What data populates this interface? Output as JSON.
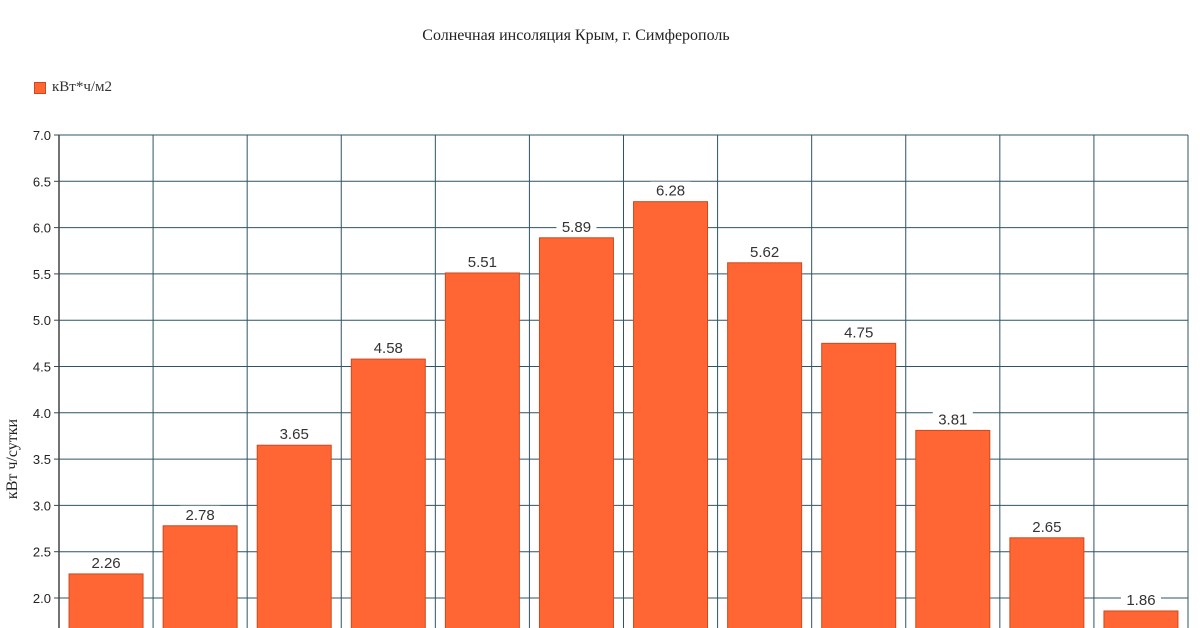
{
  "chart_data": {
    "type": "bar",
    "title": "Солнечная инсоляция Крым, г. Симферополь",
    "ylabel": "кВт ч/сутки",
    "xlabel": "",
    "categories": [
      "",
      "",
      "",
      "",
      "",
      "",
      "",
      "",
      "",
      "",
      "",
      ""
    ],
    "series": [
      {
        "name": "кВт*ч/м2",
        "values": [
          2.26,
          2.78,
          3.65,
          4.58,
          5.51,
          5.89,
          6.28,
          5.62,
          4.75,
          3.81,
          2.65,
          1.86
        ]
      }
    ],
    "ylim": [
      2.0,
      7.0
    ],
    "yticks": [
      "2.0",
      "2.5",
      "3.0",
      "3.5",
      "4.0",
      "4.5",
      "5.0",
      "5.5",
      "6.0",
      "6.5",
      "7.0"
    ],
    "grid": true,
    "legend_position": "top-left",
    "colors": {
      "bar": "#ff6633",
      "bar_edge": "#cc4a1e",
      "grid": "#2e5466",
      "axis": "#444444"
    }
  }
}
